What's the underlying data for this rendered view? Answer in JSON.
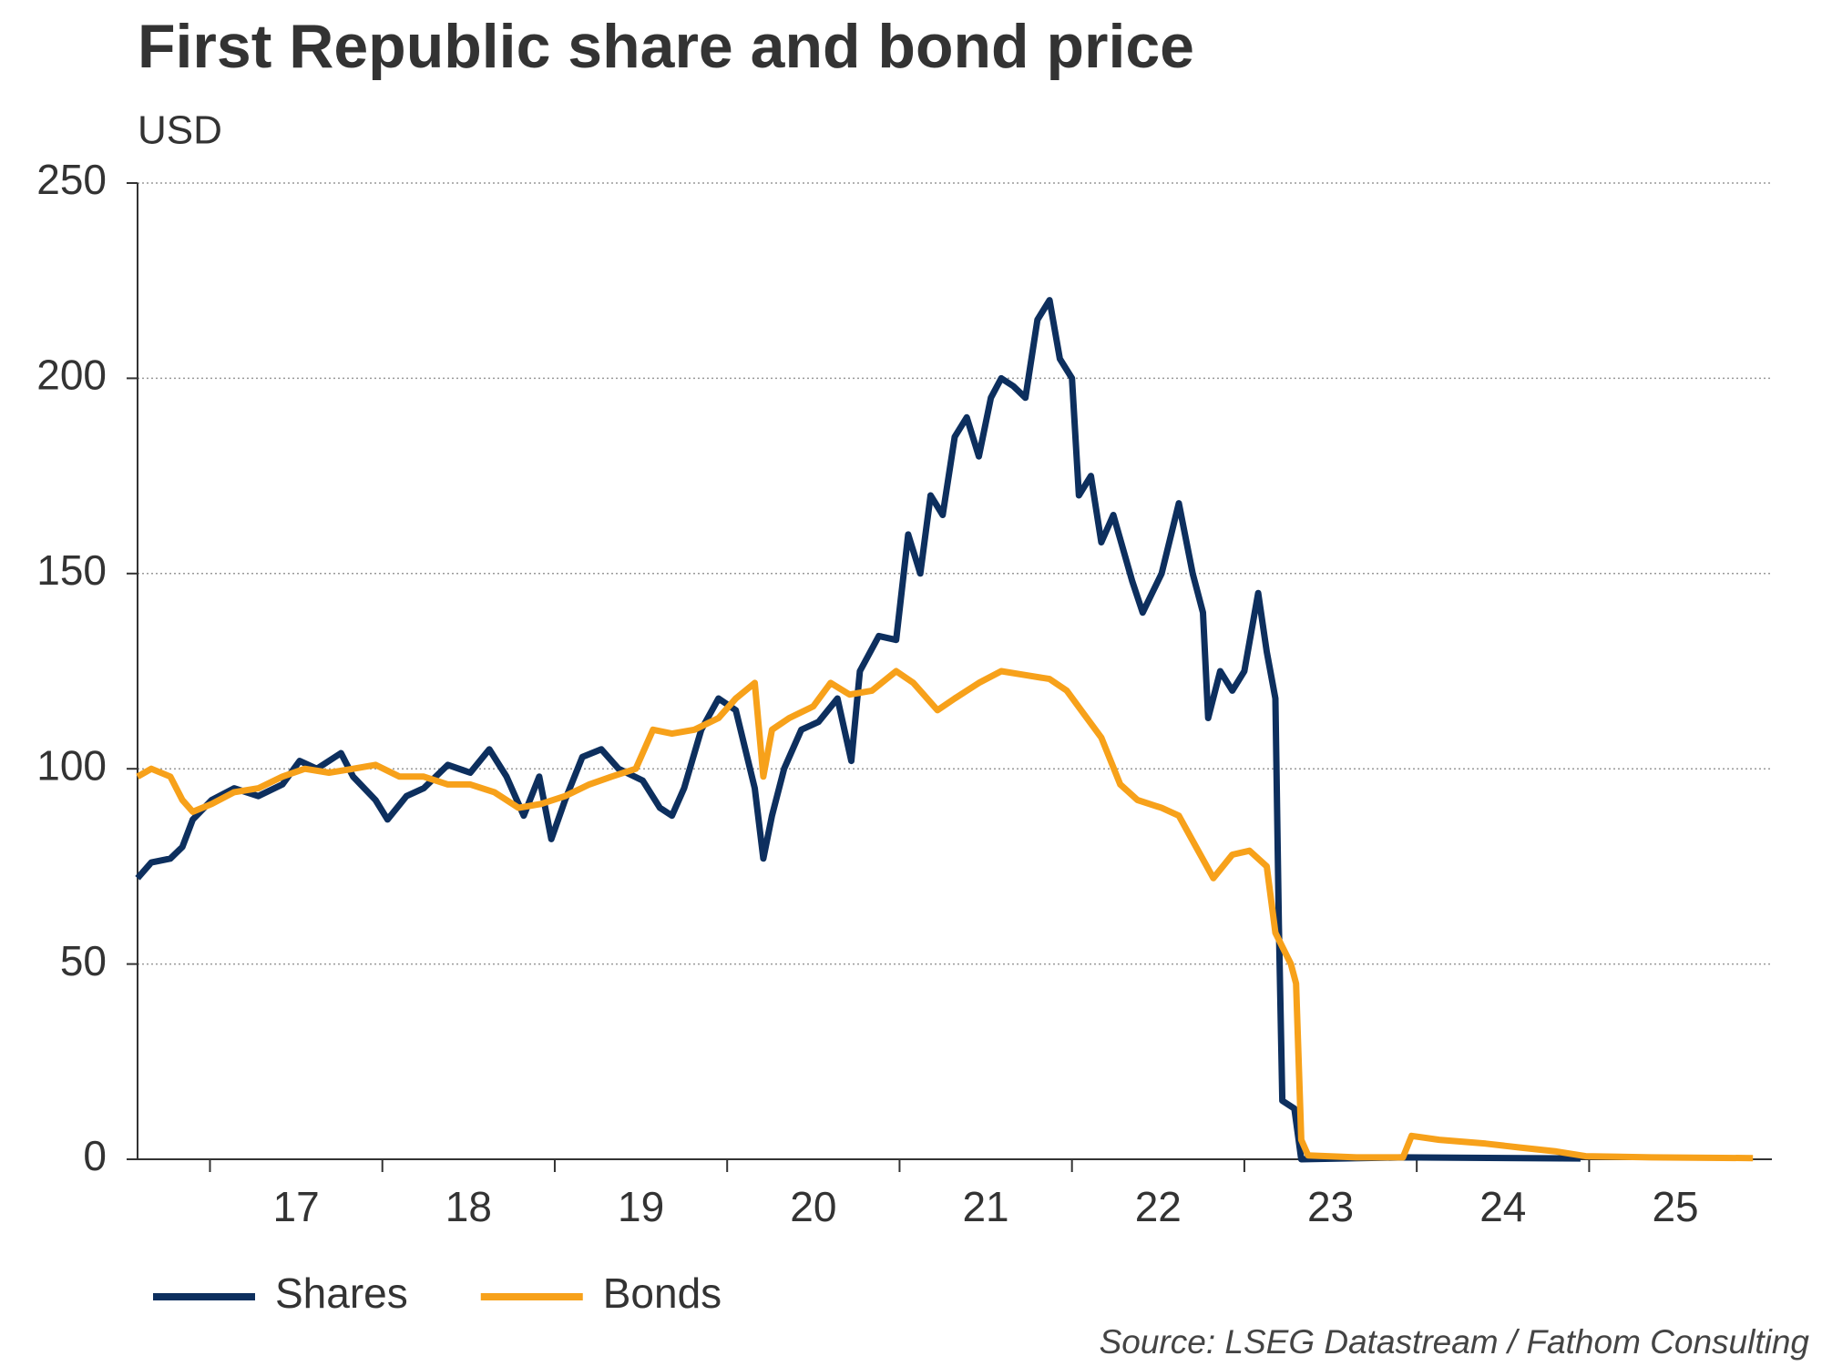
{
  "chart_data": {
    "type": "line",
    "title": "First Republic share and bond price",
    "y_label": "USD",
    "source": "Source: LSEG Datastream / Fathom Consulting",
    "xlim": [
      16.58,
      26.06
    ],
    "xticks": [
      17,
      18,
      19,
      20,
      21,
      22,
      23,
      24,
      25
    ],
    "ylim": [
      0,
      250
    ],
    "yticks": [
      0,
      50,
      100,
      150,
      200,
      250
    ],
    "grid": true,
    "legend": "bottom",
    "series": [
      {
        "name": "Shares",
        "color": "#0d2f5e",
        "x": [
          16.58,
          16.66,
          16.77,
          16.84,
          16.9,
          17.01,
          17.14,
          17.28,
          17.42,
          17.52,
          17.62,
          17.76,
          17.83,
          17.96,
          18.03,
          18.14,
          18.24,
          18.38,
          18.51,
          18.62,
          18.72,
          18.82,
          18.91,
          18.98,
          19.06,
          19.16,
          19.27,
          19.37,
          19.51,
          19.61,
          19.68,
          19.75,
          19.85,
          19.95,
          20.05,
          20.16,
          20.21,
          20.26,
          20.33,
          20.43,
          20.53,
          20.64,
          20.72,
          20.77,
          20.88,
          20.98,
          21.05,
          21.12,
          21.18,
          21.25,
          21.32,
          21.39,
          21.46,
          21.53,
          21.59,
          21.66,
          21.73,
          21.8,
          21.87,
          21.93,
          22.0,
          22.04,
          22.11,
          22.17,
          22.24,
          22.35,
          22.41,
          22.52,
          22.62,
          22.7,
          22.76,
          22.79,
          22.86,
          22.93,
          23.0,
          23.08,
          23.13,
          23.18,
          23.2,
          23.22,
          23.29,
          23.33,
          23.92,
          24.95
        ],
        "values": [
          72,
          76,
          77,
          80,
          87,
          92,
          95,
          93,
          96,
          102,
          100,
          104,
          98,
          92,
          87,
          93,
          95,
          101,
          99,
          105,
          98,
          88,
          98,
          82,
          92,
          103,
          105,
          100,
          97,
          90,
          88,
          95,
          110,
          118,
          115,
          95,
          77,
          88,
          100,
          110,
          112,
          118,
          102,
          125,
          134,
          133,
          160,
          150,
          170,
          165,
          185,
          190,
          180,
          195,
          200,
          198,
          195,
          215,
          220,
          205,
          200,
          170,
          175,
          158,
          165,
          148,
          140,
          150,
          168,
          150,
          140,
          113,
          125,
          120,
          125,
          145,
          130,
          118,
          60,
          15,
          13,
          0,
          0.5,
          0.2
        ]
      },
      {
        "name": "Bonds",
        "color": "#f7a11a",
        "x": [
          16.58,
          16.66,
          16.77,
          16.84,
          16.9,
          17.01,
          17.14,
          17.28,
          17.42,
          17.55,
          17.69,
          17.83,
          17.96,
          18.1,
          18.24,
          18.38,
          18.51,
          18.65,
          18.79,
          18.92,
          19.06,
          19.2,
          19.33,
          19.47,
          19.57,
          19.68,
          19.81,
          19.95,
          20.05,
          20.16,
          20.21,
          20.26,
          20.36,
          20.5,
          20.6,
          20.71,
          20.84,
          20.98,
          21.08,
          21.22,
          21.32,
          21.46,
          21.59,
          21.73,
          21.87,
          21.97,
          22.07,
          22.17,
          22.28,
          22.38,
          22.52,
          22.62,
          22.72,
          22.82,
          22.93,
          23.03,
          23.13,
          23.18,
          23.27,
          23.3,
          23.33,
          23.37,
          23.65,
          23.92,
          23.97,
          24.13,
          24.4,
          24.6,
          24.81,
          24.98,
          25.36,
          25.95
        ],
        "values": [
          98,
          100,
          98,
          92,
          89,
          91,
          94,
          95,
          98,
          100,
          99,
          100,
          101,
          98,
          98,
          96,
          96,
          94,
          90,
          91,
          93,
          96,
          98,
          100,
          110,
          109,
          110,
          113,
          118,
          122,
          98,
          110,
          113,
          116,
          122,
          119,
          120,
          125,
          122,
          115,
          118,
          122,
          125,
          124,
          123,
          120,
          114,
          108,
          96,
          92,
          90,
          88,
          80,
          72,
          78,
          79,
          75,
          58,
          50,
          45,
          5,
          1,
          0.5,
          0.5,
          6,
          5,
          4,
          3,
          2,
          0.8,
          0.5,
          0.3
        ]
      }
    ]
  }
}
